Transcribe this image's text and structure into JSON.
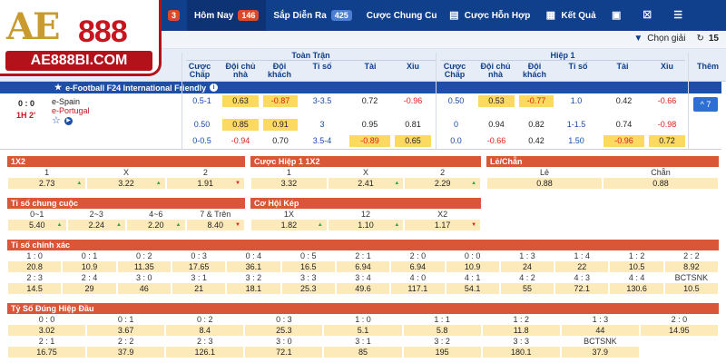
{
  "logo": {
    "top": "AE",
    "num": "888",
    "url": "AE888BI.COM"
  },
  "nav": {
    "partial_count": "3",
    "tabs": [
      {
        "label": "Hôm Nay",
        "count": "146"
      },
      {
        "label": "Sắp Diễn Ra",
        "count": "425"
      },
      {
        "label": "Cược Chung Cu"
      },
      {
        "label": "Cược Hỗn Hợp"
      },
      {
        "label": "Kết Quả"
      }
    ]
  },
  "subbar": {
    "picker_label": "Chọn giải",
    "picker_count": "15"
  },
  "header": {
    "group_full": "Toàn Trận",
    "group_half": "Hiệp 1",
    "more": "Thêm",
    "cols": [
      "Cược Chấp",
      "Đội chủ nhà",
      "Đội khách",
      "Tỉ số",
      "Tài",
      "Xỉu"
    ]
  },
  "league": {
    "name": "e-Football F24 International Friendly"
  },
  "match": {
    "score": "0 : 0",
    "time": "1H 2'",
    "home": "e-Spain",
    "away": "e-Portugal",
    "more_count": "7",
    "full": [
      [
        "0.5-1",
        "0.63",
        "-0.87",
        "3-3.5",
        "0.72",
        "-0.96"
      ],
      [
        "0.50",
        "0.85",
        "0.91",
        "3",
        "0.95",
        "0.81"
      ],
      [
        "0-0.5",
        "-0.94",
        "0.70",
        "3.5-4",
        "-0.89",
        "0.65"
      ]
    ],
    "half": [
      [
        "0.50",
        "0.53",
        "-0.77",
        "1.0",
        "0.42",
        "-0.66"
      ],
      [
        "0",
        "0.94",
        "0.82",
        "1-1.5",
        "0.74",
        "-0.98"
      ],
      [
        "0.0",
        "-0.66",
        "0.42",
        "1.50",
        "-0.96",
        "0.72"
      ]
    ]
  },
  "p1x2": {
    "title": "1X2",
    "labels": [
      "1",
      "X",
      "2"
    ],
    "values": [
      "2.73",
      "3.22",
      "1.91"
    ]
  },
  "pHalf1x2": {
    "title": "Cược Hiệp 1 1X2",
    "labels": [
      "1",
      "X",
      "2"
    ],
    "values": [
      "3.32",
      "2.41",
      "2.29"
    ]
  },
  "pOddEven": {
    "title": "Lẻ/Chẵn",
    "labels": [
      "Lẻ",
      "Chẵn"
    ],
    "values": [
      "0.88",
      "0.88"
    ]
  },
  "pTotal": {
    "title": "Tỉ số chung cuộc",
    "labels": [
      "0~1",
      "2~3",
      "4~6",
      "7 & Trên"
    ],
    "values": [
      "5.40",
      "2.24",
      "2.20",
      "8.40"
    ]
  },
  "pDouble": {
    "title": "Cơ Hội Kép",
    "labels": [
      "1X",
      "12",
      "X2"
    ],
    "values": [
      "1.82",
      "1.10",
      "1.17"
    ]
  },
  "pExact": {
    "title": "Tỉ số chính xác",
    "r1l": [
      "1 : 0",
      "0 : 1",
      "0 : 2",
      "0 : 3",
      "0 : 4",
      "0 : 5",
      "2 : 1",
      "2 : 0",
      "0 : 0",
      "1 : 3",
      "1 : 4",
      "1 : 2",
      "2 : 2"
    ],
    "r1v": [
      "20.8",
      "10.9",
      "11.35",
      "17.65",
      "36.1",
      "16.5",
      "6.94",
      "6.94",
      "10.9",
      "24",
      "22",
      "10.5",
      "8.92"
    ],
    "r2l": [
      "2 : 3",
      "2 : 4",
      "3 : 0",
      "3 : 1",
      "3 : 2",
      "3 : 3",
      "3 : 4",
      "4 : 0",
      "4 : 1",
      "4 : 2",
      "4 : 3",
      "4 : 4",
      "BCTSNK"
    ],
    "r2v": [
      "14.5",
      "29",
      "46",
      "21",
      "18.1",
      "25.3",
      "49.6",
      "117.1",
      "54.1",
      "55",
      "72.1",
      "130.6",
      "10.5"
    ]
  },
  "pHalfExact": {
    "title": "Tỷ Số Đúng Hiệp Đầu",
    "r1l": [
      "0 : 0",
      "0 : 1",
      "0 : 2",
      "0 : 3",
      "1 : 0",
      "1 : 1",
      "1 : 2",
      "1 : 3",
      "2 : 0"
    ],
    "r1v": [
      "3.02",
      "3.67",
      "8.4",
      "25.3",
      "5.1",
      "5.8",
      "11.8",
      "44",
      "14.95"
    ],
    "r2l": [
      "2 : 1",
      "2 : 2",
      "2 : 3",
      "3 : 0",
      "3 : 1",
      "3 : 2",
      "3 : 3",
      "BCTSNK"
    ],
    "r2v": [
      "16.75",
      "37.9",
      "126.1",
      "72.1",
      "85",
      "195",
      "180.1",
      "37.9"
    ]
  }
}
